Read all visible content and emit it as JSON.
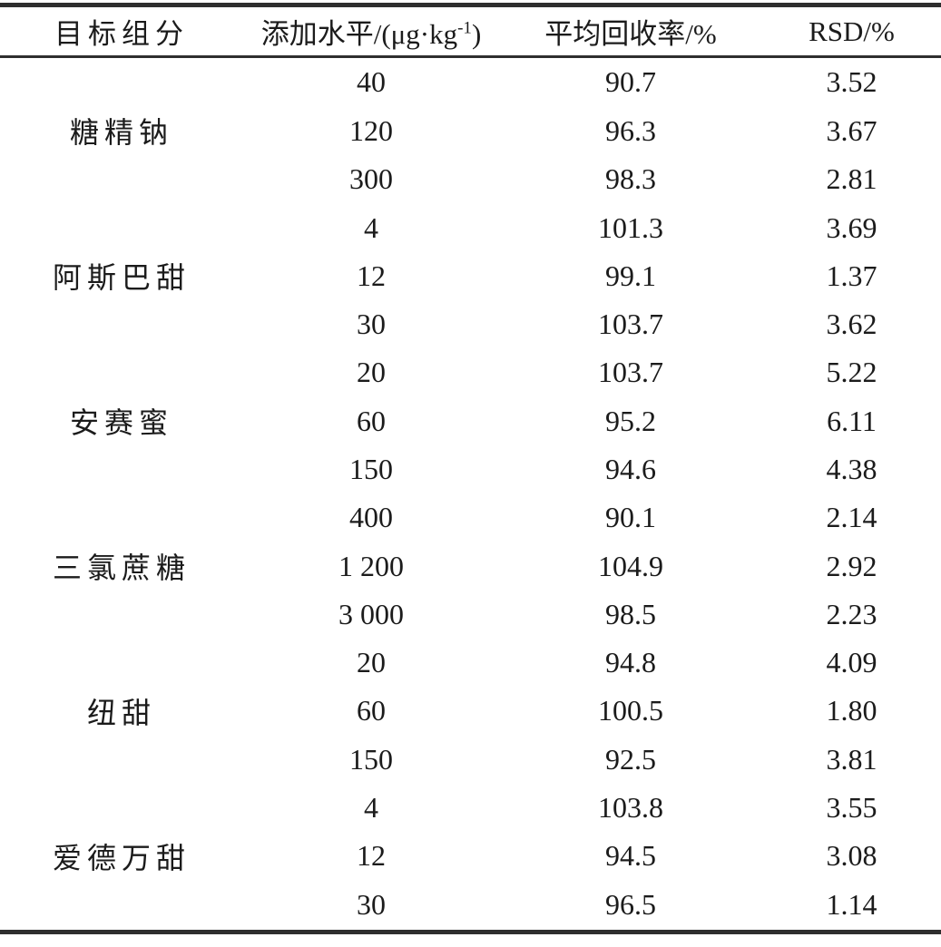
{
  "table": {
    "columns": [
      "目标组分",
      "添加水平/(μg·kg⁻¹)",
      "平均回收率/%",
      "RSD/%"
    ],
    "spike_level_header": {
      "prefix": "添加水平/(μg·kg",
      "sup": "-1",
      "suffix": ")"
    },
    "groups": [
      {
        "component": "糖精钠",
        "rows": [
          {
            "level": "40",
            "recovery": "90.7",
            "rsd": "3.52"
          },
          {
            "level": "120",
            "recovery": "96.3",
            "rsd": "3.67"
          },
          {
            "level": "300",
            "recovery": "98.3",
            "rsd": "2.81"
          }
        ]
      },
      {
        "component": "阿斯巴甜",
        "rows": [
          {
            "level": "4",
            "recovery": "101.3",
            "rsd": "3.69"
          },
          {
            "level": "12",
            "recovery": "99.1",
            "rsd": "1.37"
          },
          {
            "level": "30",
            "recovery": "103.7",
            "rsd": "3.62"
          }
        ]
      },
      {
        "component": "安赛蜜",
        "rows": [
          {
            "level": "20",
            "recovery": "103.7",
            "rsd": "5.22"
          },
          {
            "level": "60",
            "recovery": "95.2",
            "rsd": "6.11"
          },
          {
            "level": "150",
            "recovery": "94.6",
            "rsd": "4.38"
          }
        ]
      },
      {
        "component": "三氯蔗糖",
        "rows": [
          {
            "level": "400",
            "recovery": "90.1",
            "rsd": "2.14"
          },
          {
            "level": "1 200",
            "recovery": "104.9",
            "rsd": "2.92"
          },
          {
            "level": "3 000",
            "recovery": "98.5",
            "rsd": "2.23"
          }
        ]
      },
      {
        "component": "纽甜",
        "rows": [
          {
            "level": "20",
            "recovery": "94.8",
            "rsd": "4.09"
          },
          {
            "level": "60",
            "recovery": "100.5",
            "rsd": "1.80"
          },
          {
            "level": "150",
            "recovery": "92.5",
            "rsd": "3.81"
          }
        ]
      },
      {
        "component": "爱德万甜",
        "rows": [
          {
            "level": "4",
            "recovery": "103.8",
            "rsd": "3.55"
          },
          {
            "level": "12",
            "recovery": "94.5",
            "rsd": "3.08"
          },
          {
            "level": "30",
            "recovery": "96.5",
            "rsd": "1.14"
          }
        ]
      }
    ],
    "colors": {
      "text": "#1b1b1b",
      "rule": "#2e2e2e",
      "background": "#ffffff"
    }
  }
}
